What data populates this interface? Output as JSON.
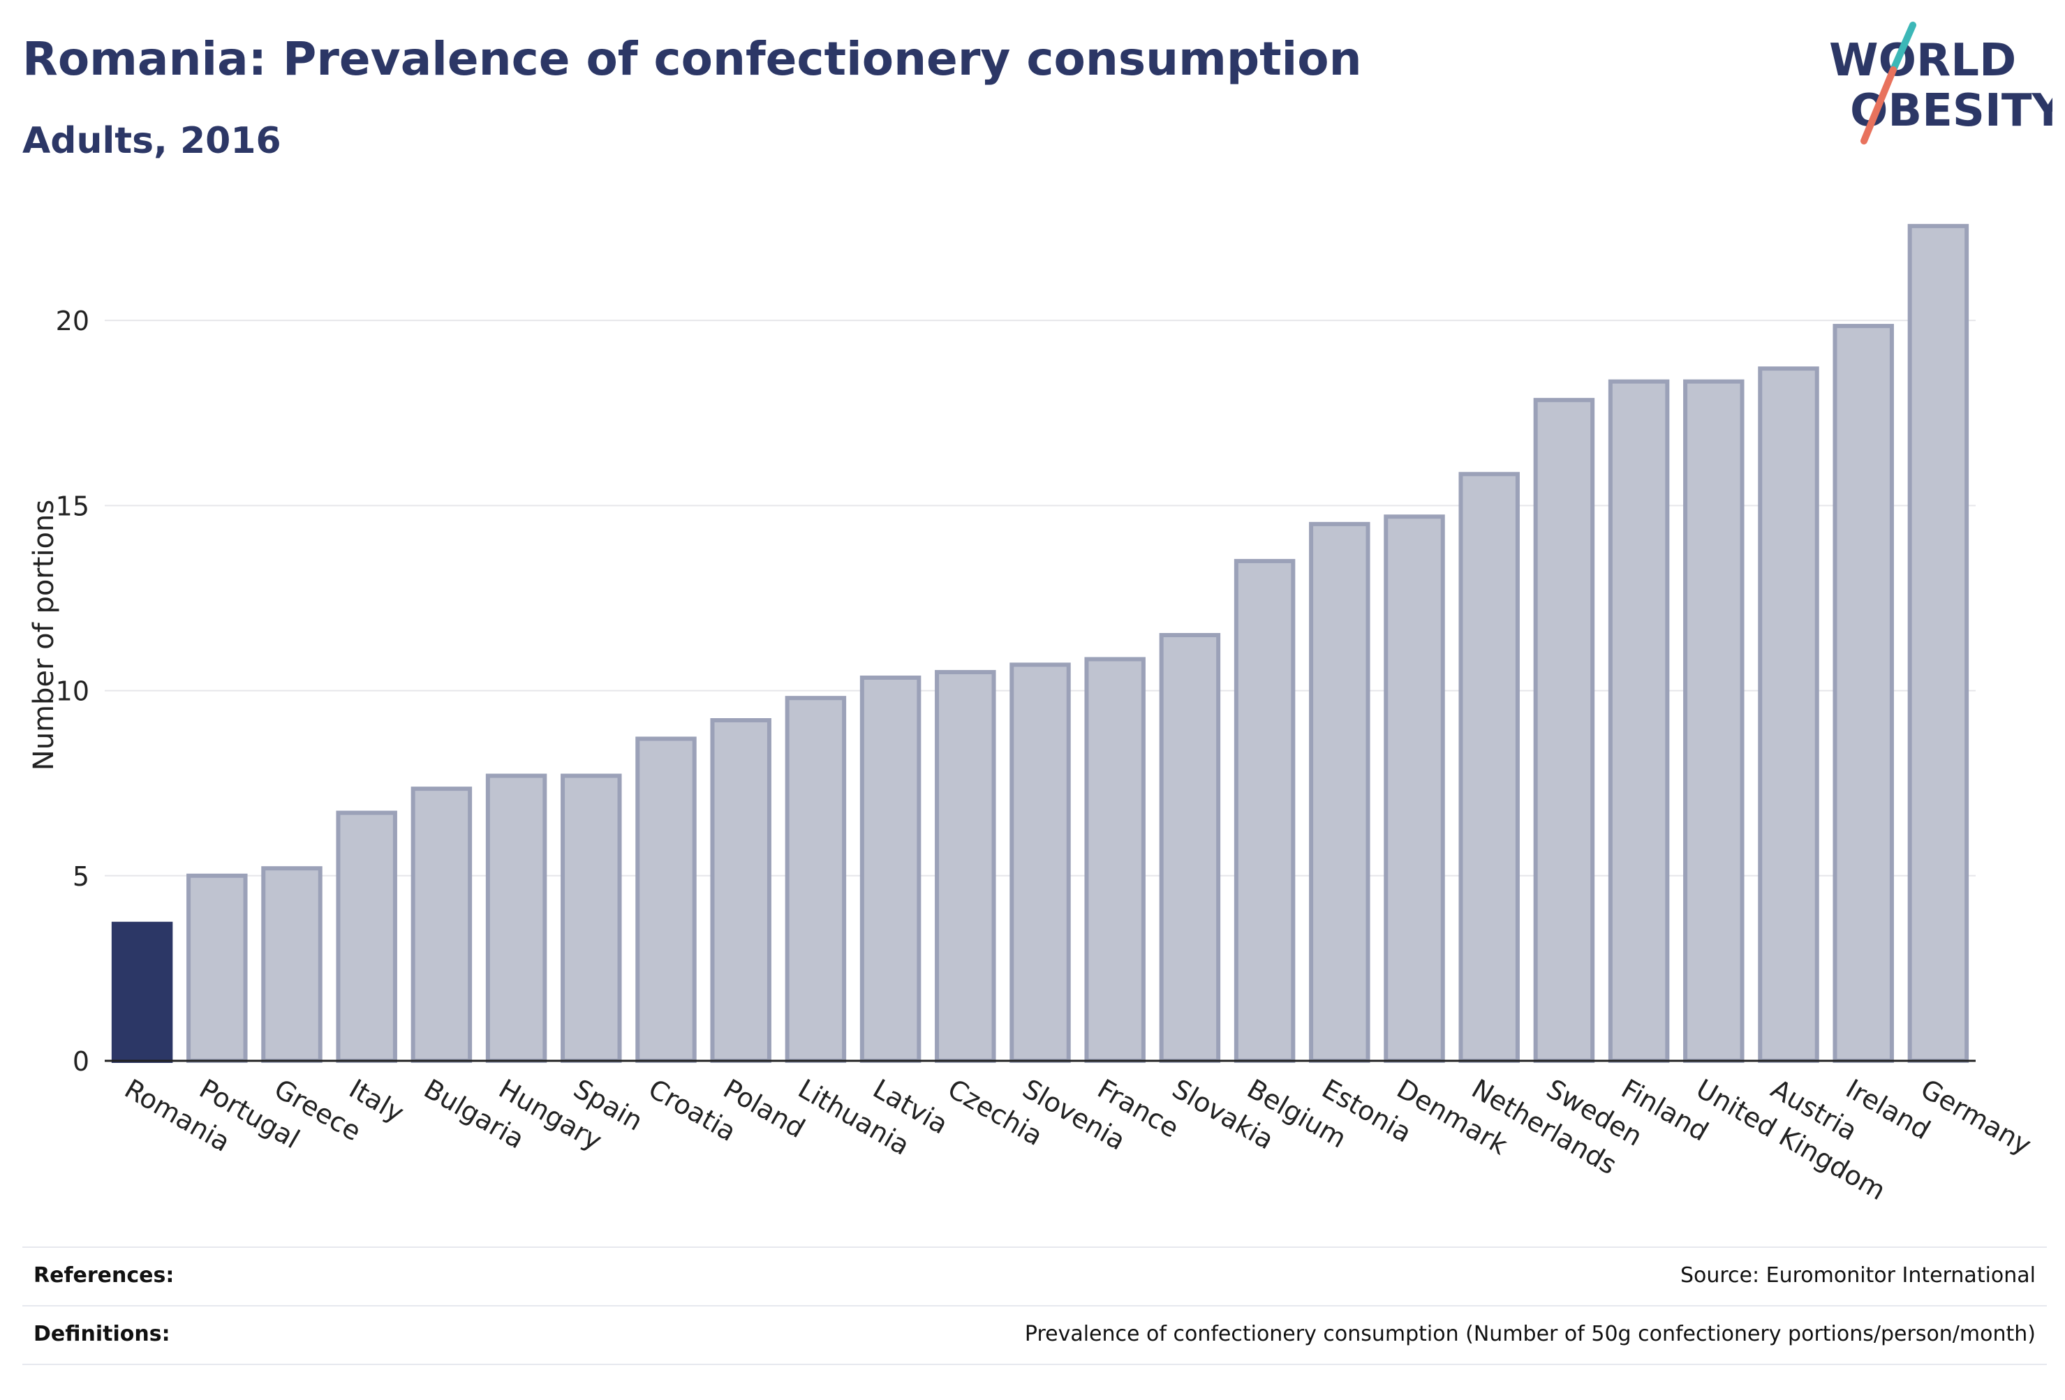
{
  "header": {
    "title": "Romania: Prevalence of confectionery consumption",
    "subtitle": "Adults, 2016"
  },
  "logo": {
    "line1": "WORLD",
    "line2": "OBESITY"
  },
  "footer": {
    "references_label": "References:",
    "references_value": "Source: Euromonitor International",
    "definitions_label": "Definitions:",
    "definitions_value": "Prevalence of confectionery consumption (Number of 50g confectionery portions/person/month)"
  },
  "colors": {
    "title": "#2c3766",
    "highlight_bar": "#2c3766",
    "bar_fill": "#bfc3d0",
    "bar_stroke": "#9ba1b8",
    "grid": "#e6e6ea",
    "logo_teal": "#3cb7b7",
    "logo_red": "#e8725d"
  },
  "chart_data": {
    "type": "bar",
    "ylabel": "Number of portions",
    "xlabel": "",
    "ylim": [
      0,
      23
    ],
    "yticks": [
      0,
      5,
      10,
      15,
      20
    ],
    "grid": true,
    "highlight": "Romania",
    "categories": [
      "Romania",
      "Portugal",
      "Greece",
      "Italy",
      "Bulgaria",
      "Hungary",
      "Spain",
      "Croatia",
      "Poland",
      "Lithuania",
      "Latvia",
      "Czechia",
      "Slovenia",
      "France",
      "Slovakia",
      "Belgium",
      "Estonia",
      "Denmark",
      "Netherlands",
      "Sweden",
      "Finland",
      "United Kingdom",
      "Austria",
      "Ireland",
      "Germany"
    ],
    "values": [
      3.7,
      5.0,
      5.2,
      6.7,
      7.35,
      7.7,
      7.7,
      8.7,
      9.2,
      9.8,
      10.35,
      10.5,
      10.7,
      10.85,
      11.5,
      13.5,
      14.5,
      14.7,
      15.85,
      17.85,
      18.35,
      18.35,
      18.7,
      19.85,
      22.55
    ]
  }
}
